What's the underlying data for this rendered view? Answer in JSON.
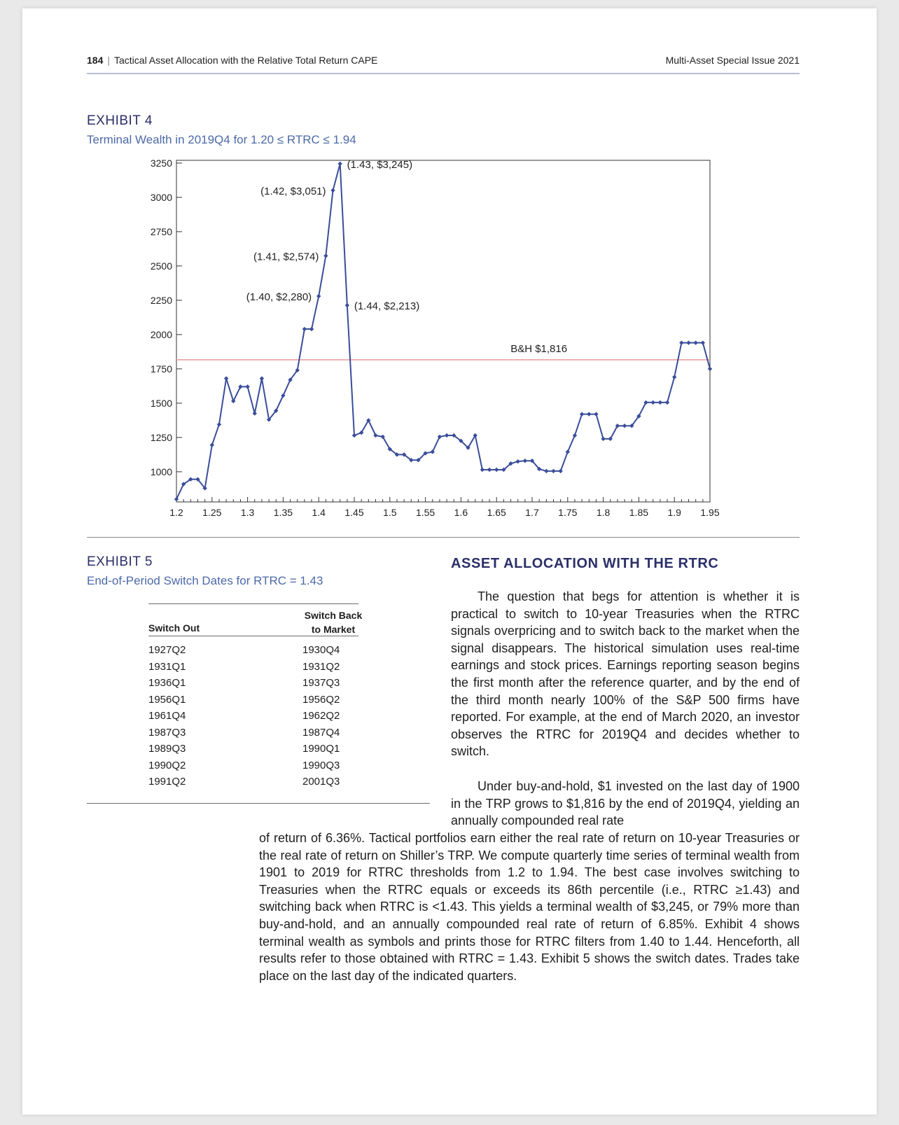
{
  "header": {
    "page_number": "184",
    "article_title": "Tactical Asset Allocation with the Relative Total Return CAPE",
    "issue": "Multi-Asset Special Issue 2021"
  },
  "exhibit4": {
    "label": "EXHIBIT 4",
    "subtitle": "Terminal Wealth in 2019Q4 for 1.20 ≤ RTRC ≤ 1.94"
  },
  "chart_data": {
    "type": "line",
    "x_ticks": [
      "1.2",
      "1.25",
      "1.3",
      "1.35",
      "1.4",
      "1.45",
      "1.5",
      "1.55",
      "1.6",
      "1.65",
      "1.7",
      "1.75",
      "1.8",
      "1.85",
      "1.9",
      "1.95"
    ],
    "y_ticks": [
      "1000",
      "1250",
      "1500",
      "1750",
      "2000",
      "2250",
      "2500",
      "2750",
      "3000",
      "3250"
    ],
    "xlim": [
      1.2,
      1.95
    ],
    "ylim": [
      780,
      3270
    ],
    "x": [
      1.2,
      1.21,
      1.22,
      1.23,
      1.24,
      1.25,
      1.26,
      1.27,
      1.28,
      1.29,
      1.3,
      1.31,
      1.32,
      1.33,
      1.34,
      1.35,
      1.36,
      1.37,
      1.38,
      1.39,
      1.4,
      1.41,
      1.42,
      1.43,
      1.44,
      1.45,
      1.46,
      1.47,
      1.48,
      1.49,
      1.5,
      1.51,
      1.52,
      1.53,
      1.54,
      1.55,
      1.56,
      1.57,
      1.58,
      1.59,
      1.6,
      1.61,
      1.62,
      1.63,
      1.64,
      1.65,
      1.66,
      1.67,
      1.68,
      1.69,
      1.7,
      1.71,
      1.72,
      1.73,
      1.74,
      1.75,
      1.76,
      1.77,
      1.78,
      1.79,
      1.8,
      1.81,
      1.82,
      1.83,
      1.84,
      1.85,
      1.86,
      1.87,
      1.88,
      1.89,
      1.9,
      1.91,
      1.92,
      1.93,
      1.94
    ],
    "y": [
      800,
      910,
      945,
      945,
      880,
      1195,
      1345,
      1680,
      1515,
      1620,
      1620,
      1425,
      1680,
      1380,
      1445,
      1555,
      1670,
      1740,
      2040,
      2040,
      2280,
      2574,
      3051,
      3245,
      2213,
      1265,
      1285,
      1375,
      1265,
      1255,
      1165,
      1125,
      1125,
      1085,
      1085,
      1135,
      1145,
      1255,
      1265,
      1265,
      1225,
      1175,
      1265,
      1015,
      1015,
      1015,
      1015,
      1060,
      1075,
      1080,
      1080,
      1020,
      1005,
      1005,
      1005,
      1145,
      1265,
      1420,
      1420,
      1420,
      1240,
      1240,
      1335,
      1335,
      1335,
      1405,
      1505,
      1505,
      1505,
      1505,
      1690,
      1940,
      1940,
      1940,
      1940
    ],
    "last_point": {
      "x": 1.95,
      "y": 1750
    },
    "annotations": [
      {
        "x": 1.4,
        "y": 2280,
        "label": "(1.40, $2,280)"
      },
      {
        "x": 1.41,
        "y": 2574,
        "label": "(1.41, $2,574)"
      },
      {
        "x": 1.42,
        "y": 3051,
        "label": "(1.42, $3,051)"
      },
      {
        "x": 1.43,
        "y": 3245,
        "label": "(1.43, $3,245)"
      },
      {
        "x": 1.44,
        "y": 2213,
        "label": "(1.44, $2,213)"
      }
    ],
    "reference_line": {
      "y": 1816,
      "label": "B&H $1,816",
      "color": "#e8a0a0"
    },
    "line_color": "#3a4d9a"
  },
  "exhibit5": {
    "label": "EXHIBIT 5",
    "subtitle": "End-of-Period Switch Dates for RTRC = 1.43",
    "col1_header": "Switch Out",
    "col2_header_line1": "Switch Back",
    "col2_header_line2": "to Market",
    "switch_out": [
      "1927Q2",
      "1931Q1",
      "1936Q1",
      "1956Q1",
      "1961Q4",
      "1987Q3",
      "1989Q3",
      "1990Q2",
      "1991Q2"
    ],
    "switch_back": [
      "1930Q4",
      "1931Q2",
      "1937Q3",
      "1956Q2",
      "1962Q2",
      "1987Q4",
      "1990Q1",
      "1990Q3",
      "2001Q3"
    ]
  },
  "section": {
    "title": "ASSET ALLOCATION WITH THE RTRC",
    "p1": "The question that begs for attention is whether it is practical to switch to 10-year Treasuries when the RTRC signals overpricing and to switch back to the market when the signal disappears. The historical simulation uses real-time earnings and stock prices. Earnings reporting season begins the first month after the reference quarter, and by the end of the third month nearly 100% of the S&P 500 firms have reported. For example, at the end of March 2020, an investor observes the RTRC for 2019Q4 and decides whether to switch.",
    "p2a": "Under buy-and-hold, $1 invested on the last day of 1900 in the TRP grows to $1,816 by the end of 2019Q4, yielding an annually compounded real rate",
    "p2b": "of return of 6.36%. Tactical portfolios earn either the real rate of return on 10-year Treasuries or the real rate of return on Shiller’s TRP. We compute quarterly time series of terminal wealth from 1901 to 2019 for RTRC thresholds from 1.2 to 1.94. The best case involves switching to Treasuries when the RTRC equals or exceeds its 86th percentile (i.e., RTRC ≥1.43) and switching back when RTRC is <1.43. This yields a terminal wealth of $3,245, or 79% more than buy-and-hold, and an annually compounded real rate of return of 6.85%. Exhibit 4 shows terminal wealth as symbols and prints those for RTRC filters from 1.40 to 1.44. Henceforth, all results refer to those obtained with RTRC = 1.43. Exhibit 5 shows the switch dates. Trades take place on the last day of the indicated quarters."
  }
}
